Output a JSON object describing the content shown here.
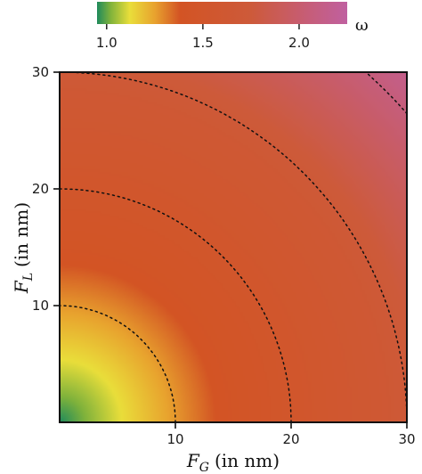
{
  "chart_data": {
    "type": "heatmap",
    "title": "",
    "x": {
      "symbol": "F",
      "subscript": "G",
      "unit": "(in nm)",
      "range": [
        0,
        30
      ],
      "ticks": [
        10,
        20,
        30
      ]
    },
    "y": {
      "symbol": "F",
      "subscript": "L",
      "unit": "(in nm)",
      "range": [
        0,
        30
      ],
      "ticks": [
        10,
        20,
        30
      ]
    },
    "colorbar": {
      "label": "ω",
      "range": [
        0.95,
        2.25
      ],
      "ticks": [
        {
          "value": 1.0,
          "label": "1.0"
        },
        {
          "value": 1.5,
          "label": "1.5"
        },
        {
          "value": 2.0,
          "label": "2.0"
        }
      ],
      "stops": [
        {
          "value": 0.95,
          "color": "#1f8a5c"
        },
        {
          "value": 1.02,
          "color": "#7fb23b"
        },
        {
          "value": 1.12,
          "color": "#e9de3a"
        },
        {
          "value": 1.25,
          "color": "#e8a22e"
        },
        {
          "value": 1.38,
          "color": "#d35424"
        },
        {
          "value": 1.75,
          "color": "#cd5a3a"
        },
        {
          "value": 2.05,
          "color": "#c65d78"
        },
        {
          "value": 2.25,
          "color": "#c060a0"
        }
      ]
    },
    "contour_radii": [
      10,
      20,
      30,
      40
    ],
    "surface_samples": [
      {
        "x": 0,
        "y": 0,
        "value": 0.95
      },
      {
        "x": 10,
        "y": 10,
        "value": 1.4
      },
      {
        "x": 20,
        "y": 20,
        "value": 1.65
      },
      {
        "x": 30,
        "y": 30,
        "value": 2.15
      }
    ]
  }
}
